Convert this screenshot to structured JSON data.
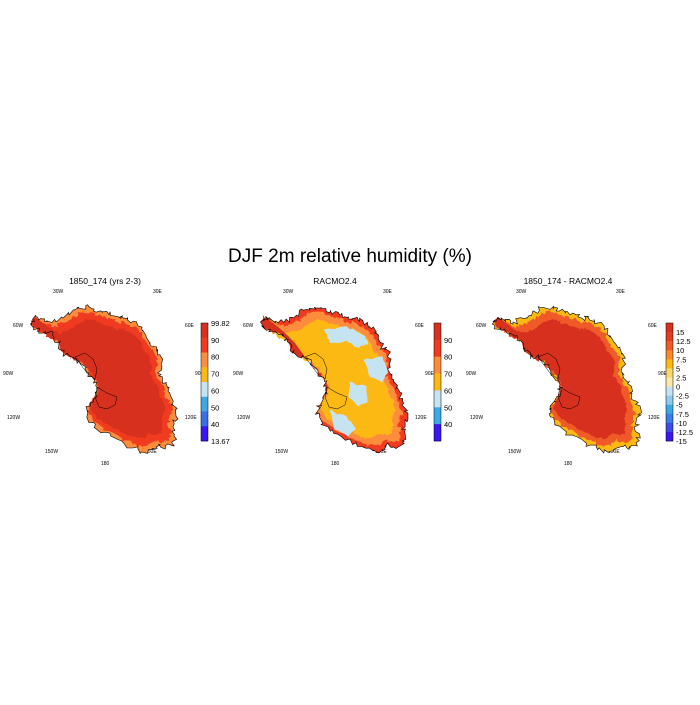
{
  "figure": {
    "title": "DJF 2m relative humidity (%)"
  },
  "colors": {
    "land_fill": "#ffffff",
    "coast_line": "#000000"
  },
  "chart_data": [
    {
      "type": "heatmap",
      "title": "1850_174 (yrs 2-3)",
      "projection": "south polar stereographic",
      "lon_labels": [
        "30W",
        "30E",
        "60W",
        "60E",
        "90W",
        "90E",
        "120W",
        "120E",
        "150W",
        "150E",
        "180"
      ],
      "colorbar": {
        "labels": [
          "99.82",
          "90",
          "80",
          "70",
          "60",
          "50",
          "40",
          "13.67"
        ],
        "colors": [
          "#d7301f",
          "#f03b20",
          "#fd8d3c",
          "#fdb913",
          "#c6e3f2",
          "#3ca9e6",
          "#3a6fe8",
          "#3a16ef"
        ]
      },
      "field": {
        "interior_color": "#d7301f",
        "fringe_colors": [
          "#f03b20",
          "#fd8d3c"
        ],
        "peninsula_color": "#d7301f"
      }
    },
    {
      "type": "heatmap",
      "title": "RACMO2.4",
      "projection": "south polar stereographic",
      "lon_labels": [
        "30W",
        "30E",
        "60W",
        "60E",
        "90W",
        "90E",
        "120W",
        "120E",
        "150W",
        "150E",
        "180"
      ],
      "colorbar": {
        "labels": [
          "90",
          "80",
          "70",
          "60",
          "50",
          "40"
        ],
        "colors": [
          "#d7301f",
          "#f03b20",
          "#fd8d3c",
          "#fdb913",
          "#c6e3f2",
          "#3ca9e6",
          "#3a16ef"
        ]
      },
      "field": {
        "interior_color": "#fdb913",
        "patch_color": "#c6e3f2",
        "fringe_colors": [
          "#fd8d3c",
          "#f03b20"
        ],
        "peninsula_color": "#d7301f"
      }
    },
    {
      "type": "heatmap",
      "title": "1850_174 - RACMO2.4",
      "projection": "south polar stereographic",
      "lon_labels": [
        "30W",
        "30E",
        "60W",
        "60E",
        "90W",
        "90E",
        "120W",
        "120E",
        "150W",
        "150E",
        "180"
      ],
      "colorbar": {
        "labels": [
          "15",
          "12.5",
          "10",
          "7.5",
          "5",
          "2.5",
          "0",
          "-2.5",
          "-5",
          "-7.5",
          "-10",
          "-12.5",
          "-15"
        ],
        "colors": [
          "#d7301f",
          "#e63a22",
          "#f05a28",
          "#f9882f",
          "#fdb913",
          "#fdd56a",
          "#fde8a8",
          "#c6e3f2",
          "#8fcaf0",
          "#3ca9e6",
          "#3a7ee8",
          "#3a4aeb",
          "#3a16ef"
        ]
      },
      "field": {
        "interior_color": "#d7301f",
        "fringe_colors": [
          "#f05a28",
          "#fdb913"
        ],
        "peninsula_color": "#d7301f"
      }
    }
  ]
}
